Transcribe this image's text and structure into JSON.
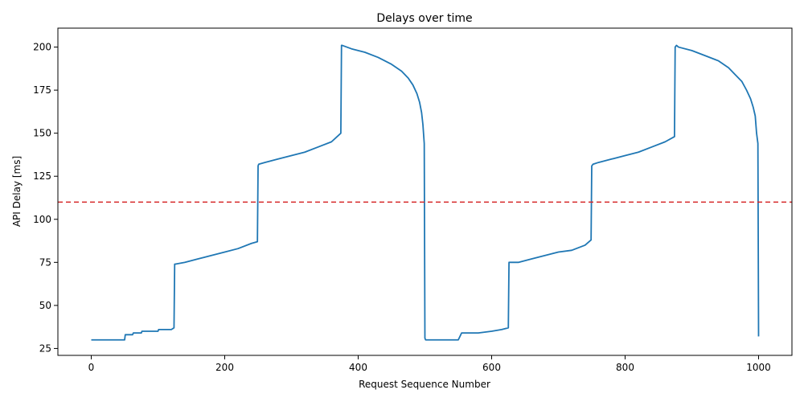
{
  "chart_data": {
    "type": "line",
    "title": "Delays over time",
    "xlabel": "Request Sequence Number",
    "ylabel": "API Delay [ms]",
    "xlim": [
      -50,
      1050
    ],
    "ylim": [
      21,
      211
    ],
    "xticks": [
      0,
      200,
      400,
      600,
      800,
      1000
    ],
    "yticks": [
      25,
      50,
      75,
      100,
      125,
      150,
      175,
      200
    ],
    "grid": false,
    "legend": "none",
    "line_color": "#1f77b4",
    "threshold": {
      "y": 110,
      "color": "#d62728",
      "style": "dashed"
    },
    "series": [
      {
        "x": [
          0,
          50,
          51,
          62,
          63,
          75,
          76,
          100,
          101,
          120,
          124,
          125,
          126,
          140,
          160,
          180,
          200,
          220,
          240,
          249,
          250,
          251,
          260,
          280,
          300,
          320,
          340,
          360,
          374,
          375,
          376,
          390,
          410,
          430,
          450,
          465,
          475,
          482,
          488,
          492,
          495,
          497,
          499,
          500,
          501,
          530,
          550,
          555,
          560,
          580,
          600,
          615,
          625,
          626,
          640,
          660,
          680,
          700,
          720,
          740,
          749,
          750,
          752,
          760,
          780,
          800,
          820,
          840,
          860,
          874,
          875,
          877,
          880,
          900,
          920,
          940,
          955,
          965,
          975,
          982,
          988,
          992,
          995,
          997,
          999,
          1000
        ],
        "y": [
          30,
          30,
          33,
          33,
          34,
          34,
          35,
          35,
          36,
          36,
          37,
          74,
          74,
          75,
          77,
          79,
          81,
          83,
          86,
          87,
          131,
          132,
          133,
          135,
          137,
          139,
          142,
          145,
          150,
          201,
          201,
          199,
          197,
          194,
          190,
          186,
          182,
          178,
          173,
          168,
          162,
          155,
          144,
          31,
          30,
          30,
          30,
          34,
          34,
          34,
          35,
          36,
          37,
          75,
          75,
          77,
          79,
          81,
          82,
          85,
          88,
          131,
          132,
          133,
          135,
          137,
          139,
          142,
          145,
          148,
          200,
          201,
          200,
          198,
          195,
          192,
          188,
          184,
          180,
          175,
          170,
          165,
          160,
          150,
          144,
          32
        ]
      }
    ]
  }
}
